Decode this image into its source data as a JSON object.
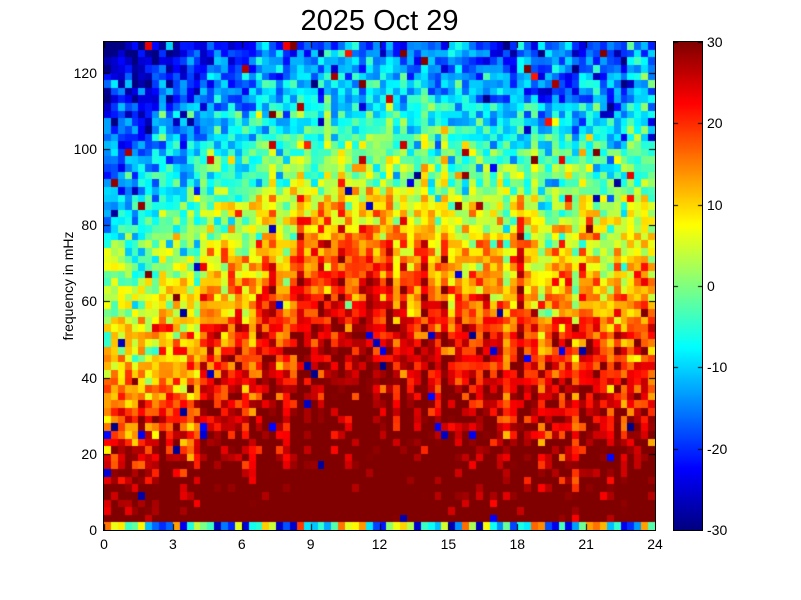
{
  "figure": {
    "background": "#ffffff",
    "axis_color": "#000000"
  },
  "chart_data": {
    "type": "heatmap",
    "subtype": "spectrogram",
    "title": "2025 Oct 29",
    "xlabel": "",
    "ylabel": "frequency in mHz",
    "xlim": [
      0,
      24
    ],
    "ylim": [
      0,
      128
    ],
    "xticks": [
      0,
      3,
      6,
      9,
      12,
      15,
      18,
      21,
      24
    ],
    "yticks": [
      0,
      20,
      40,
      60,
      80,
      100,
      120
    ],
    "grid": false,
    "colormap": "jet",
    "colorbar": {
      "limits": [
        -30,
        30
      ],
      "ticks": [
        30,
        20,
        10,
        0,
        -10,
        -20,
        -30
      ],
      "position": "right",
      "min_color": "#00007f",
      "mid_color": "#80ff80",
      "max_color": "#7f0000"
    },
    "resolution": {
      "ncols": 80,
      "nrows": 64
    },
    "pattern": {
      "description": "Power (dB) highest (~+30, dark red) below 10 mHz all day, decreasing with frequency; a broad daytime enhancement between ~04h and ~16h pushes red/orange power up to ~85 mHz; early-morning high frequencies are coldest (blue, ~-20); narrow vertical burst streaks occur at discrete hours; bottom-most frequency bin is a mixed low-power strip; speckle noise with rare extreme outliers throughout.",
      "seed": 20251029,
      "base_value_at_0mHz": 32,
      "slope_per_mHz": -0.4,
      "bottom_boost": {
        "amp": 7,
        "f_scale": 12
      },
      "bottom_row": {
        "f_below": 2,
        "min": -28,
        "max": 20
      },
      "dome": {
        "center_hour": 10.3,
        "amp": 13,
        "hour_width": 4.9,
        "f_center": 55,
        "f_width": 55
      },
      "evening": {
        "center_hour": 19.5,
        "amp": 5,
        "hour_width": 5.5
      },
      "morning_cold_top": {
        "center_hour": 1.0,
        "amp": 9,
        "hour_width": 4.0
      },
      "noise_sigma": 5.5,
      "column_sigma": 2.2,
      "outlier_prob": 0.012,
      "events": [
        {
          "hour": 4.6,
          "amp": 6,
          "ftop": 70
        },
        {
          "hour": 5.9,
          "amp": 5,
          "ftop": 60
        },
        {
          "hour": 7.3,
          "amp": 8,
          "ftop": 88
        },
        {
          "hour": 8.6,
          "amp": 8,
          "ftop": 96
        },
        {
          "hour": 9.3,
          "amp": 6,
          "ftop": 80
        },
        {
          "hour": 10.3,
          "amp": 7,
          "ftop": 100
        },
        {
          "hour": 11.4,
          "amp": 8,
          "ftop": 108
        },
        {
          "hour": 12.4,
          "amp": 7,
          "ftop": 100
        },
        {
          "hour": 13.0,
          "amp": 6,
          "ftop": 90
        },
        {
          "hour": 14.0,
          "amp": 11,
          "ftop": 128
        },
        {
          "hour": 14.8,
          "amp": 8,
          "ftop": 116
        },
        {
          "hour": 16.6,
          "amp": 7,
          "ftop": 82
        },
        {
          "hour": 18.1,
          "amp": 11,
          "ftop": 92
        },
        {
          "hour": 19.4,
          "amp": 5,
          "ftop": 70
        },
        {
          "hour": 20.9,
          "amp": 8,
          "ftop": 96
        },
        {
          "hour": 22.4,
          "amp": 6,
          "ftop": 62
        }
      ]
    }
  }
}
